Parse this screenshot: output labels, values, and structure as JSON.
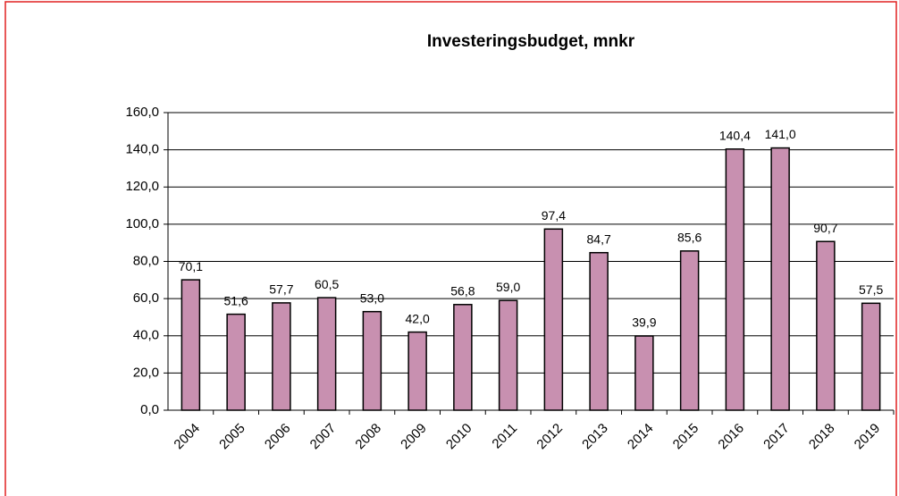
{
  "chart_data": {
    "type": "bar",
    "title": "Investeringsbudget, mnkr",
    "categories": [
      "2004",
      "2005",
      "2006",
      "2007",
      "2008",
      "2009",
      "2010",
      "2011",
      "2012",
      "2013",
      "2014",
      "2015",
      "2016",
      "2017",
      "2018",
      "2019"
    ],
    "values": [
      70.1,
      51.6,
      57.7,
      60.5,
      53.0,
      42.0,
      56.8,
      59.0,
      97.4,
      84.7,
      39.9,
      85.6,
      140.4,
      141.0,
      90.7,
      57.5
    ],
    "value_labels": [
      "70,1",
      "51,6",
      "57,7",
      "60,5",
      "53,0",
      "42,0",
      "56,8",
      "59,0",
      "97,4",
      "84,7",
      "39,9",
      "85,6",
      "140,4",
      "141,0",
      "90,7",
      "57,5"
    ],
    "color": "#c890b0",
    "ylim": [
      0,
      160
    ],
    "yticks": [
      {
        "value": 0,
        "label": "0,0"
      },
      {
        "value": 20,
        "label": "20,0"
      },
      {
        "value": 40,
        "label": "40,0"
      },
      {
        "value": 60,
        "label": "60,0"
      },
      {
        "value": 80,
        "label": "80,0"
      },
      {
        "value": 100,
        "label": "100,0"
      },
      {
        "value": 120,
        "label": "120,0"
      },
      {
        "value": 140,
        "label": "140,0"
      },
      {
        "value": 160,
        "label": "160,0"
      }
    ],
    "grid": true
  }
}
